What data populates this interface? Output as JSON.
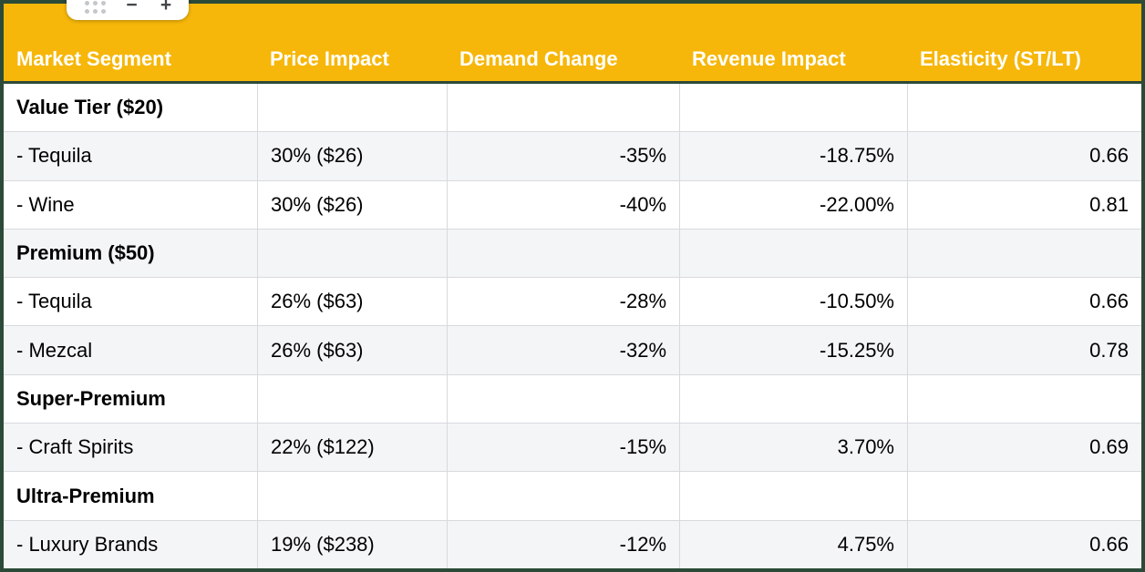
{
  "toolbar": {
    "drag_handle": "table-drag-handle",
    "remove_label": "−",
    "add_label": "+"
  },
  "colors": {
    "header_bg": "#F6B70A",
    "header_text": "#FFFFFF",
    "frame": "#2C4A38",
    "gridline": "#D7DADD",
    "row_alt_bg": "#F4F5F7"
  },
  "table": {
    "headers": [
      "Market Segment",
      "Price Impact",
      "Demand Change",
      "Revenue Impact",
      "Elasticity (ST/LT)"
    ],
    "rows": [
      {
        "type": "section",
        "cells": [
          "Value Tier ($20)",
          "",
          "",
          "",
          ""
        ]
      },
      {
        "type": "item",
        "cells": [
          "- Tequila",
          "30% ($26)",
          "-35%",
          "-18.75%",
          "0.66"
        ]
      },
      {
        "type": "item",
        "cells": [
          "- Wine",
          "30% ($26)",
          "-40%",
          "-22.00%",
          "0.81"
        ]
      },
      {
        "type": "section",
        "cells": [
          "Premium ($50)",
          "",
          "",
          "",
          ""
        ]
      },
      {
        "type": "item",
        "cells": [
          "- Tequila",
          "26% ($63)",
          "-28%",
          "-10.50%",
          "0.66"
        ]
      },
      {
        "type": "item",
        "cells": [
          "- Mezcal",
          "26% ($63)",
          "-32%",
          "-15.25%",
          "0.78"
        ]
      },
      {
        "type": "section",
        "cells": [
          "Super-Premium",
          "",
          "",
          "",
          ""
        ]
      },
      {
        "type": "item",
        "cells": [
          "- Craft Spirits",
          "22% ($122)",
          "-15%",
          "3.70%",
          "0.69"
        ]
      },
      {
        "type": "section",
        "cells": [
          "Ultra-Premium",
          "",
          "",
          "",
          ""
        ]
      },
      {
        "type": "item",
        "cells": [
          "- Luxury Brands",
          "19% ($238)",
          "-12%",
          "4.75%",
          "0.66"
        ]
      }
    ]
  }
}
